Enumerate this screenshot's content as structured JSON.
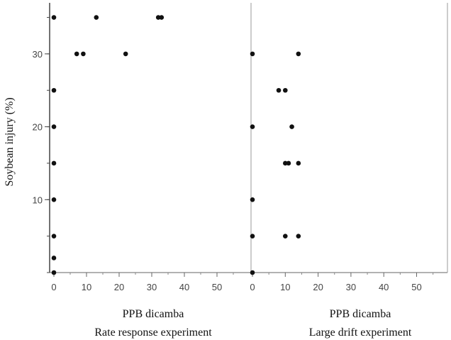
{
  "chart_data": {
    "type": "scatter",
    "ylabel": "Soybean injury (%)",
    "ylim": [
      0,
      37
    ],
    "yticks": [
      10,
      20,
      30
    ],
    "grid": false,
    "legend": "none",
    "point_color": "#111111",
    "panels": [
      {
        "xlabel_line1": "PPB dicamba",
        "xlabel_line2": "Rate response experiment",
        "xlim": [
          0,
          60
        ],
        "xticks": [
          0,
          10,
          20,
          30,
          40,
          50
        ],
        "points": [
          {
            "x": 0,
            "y": 35
          },
          {
            "x": 13,
            "y": 35
          },
          {
            "x": 32,
            "y": 35
          },
          {
            "x": 33,
            "y": 35
          },
          {
            "x": 7,
            "y": 30
          },
          {
            "x": 9,
            "y": 30
          },
          {
            "x": 22,
            "y": 30
          },
          {
            "x": 0,
            "y": 25
          },
          {
            "x": 0,
            "y": 20
          },
          {
            "x": 0,
            "y": 15
          },
          {
            "x": 0,
            "y": 10
          },
          {
            "x": 0,
            "y": 5
          },
          {
            "x": 0,
            "y": 2
          },
          {
            "x": 0,
            "y": 0
          }
        ]
      },
      {
        "xlabel_line1": "PPB dicamba",
        "xlabel_line2": "Large drift experiment",
        "xlim": [
          0,
          60
        ],
        "xticks": [
          0,
          10,
          20,
          30,
          40,
          50
        ],
        "points": [
          {
            "x": 0,
            "y": 30
          },
          {
            "x": 14,
            "y": 30
          },
          {
            "x": 8,
            "y": 25
          },
          {
            "x": 10,
            "y": 25
          },
          {
            "x": 0,
            "y": 20
          },
          {
            "x": 12,
            "y": 20
          },
          {
            "x": 10,
            "y": 15
          },
          {
            "x": 11,
            "y": 15
          },
          {
            "x": 14,
            "y": 15
          },
          {
            "x": 0,
            "y": 10
          },
          {
            "x": 0,
            "y": 5
          },
          {
            "x": 10,
            "y": 5
          },
          {
            "x": 14,
            "y": 5
          },
          {
            "x": 0,
            "y": 0
          }
        ]
      }
    ]
  }
}
